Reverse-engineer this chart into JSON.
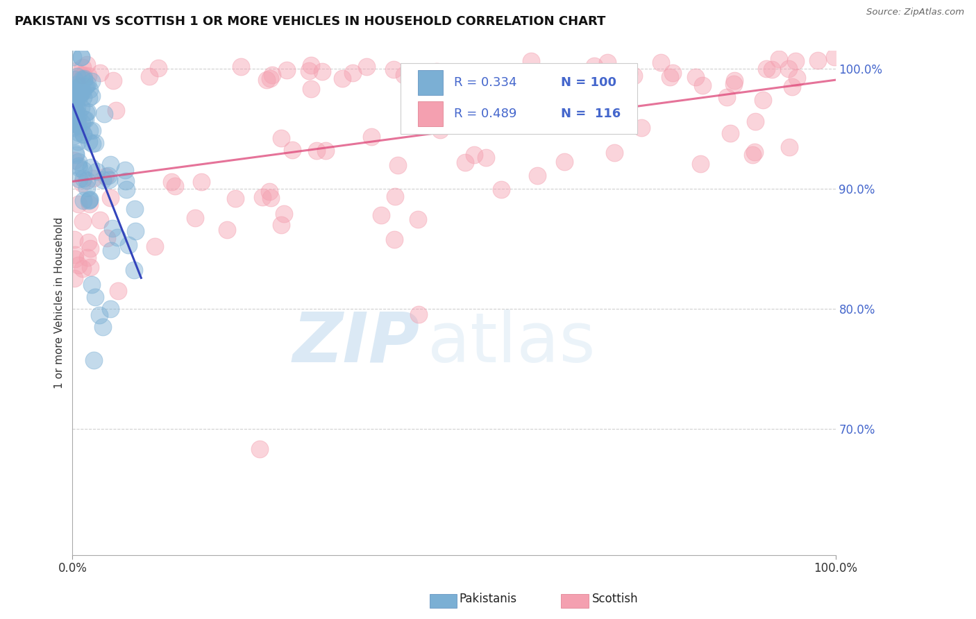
{
  "title": "PAKISTANI VS SCOTTISH 1 OR MORE VEHICLES IN HOUSEHOLD CORRELATION CHART",
  "source": "Source: ZipAtlas.com",
  "ylabel": "1 or more Vehicles in Household",
  "xlim": [
    0.0,
    1.0
  ],
  "ylim": [
    0.595,
    1.015
  ],
  "ytick_vals": [
    0.7,
    0.8,
    0.9,
    1.0
  ],
  "ytick_labels": [
    "70.0%",
    "80.0%",
    "90.0%",
    "100.0%"
  ],
  "xtick_vals": [
    0.0,
    1.0
  ],
  "xtick_labels": [
    "0.0%",
    "100.0%"
  ],
  "blue_color": "#7BAFD4",
  "pink_color": "#F4A0B0",
  "blue_line_color": "#3344BB",
  "pink_line_color": "#DD4477",
  "grid_color": "#BBBBBB",
  "background_color": "#FFFFFF",
  "ytick_color": "#4466CC",
  "label_pakistanis": "Pakistanis",
  "label_scottish": "Scottish",
  "legend_r1": "R = 0.334",
  "legend_n1": "N = 100",
  "legend_r2": "R = 0.489",
  "legend_n2": "N =  116",
  "watermark_zip": "ZIP",
  "watermark_atlas": "atlas"
}
